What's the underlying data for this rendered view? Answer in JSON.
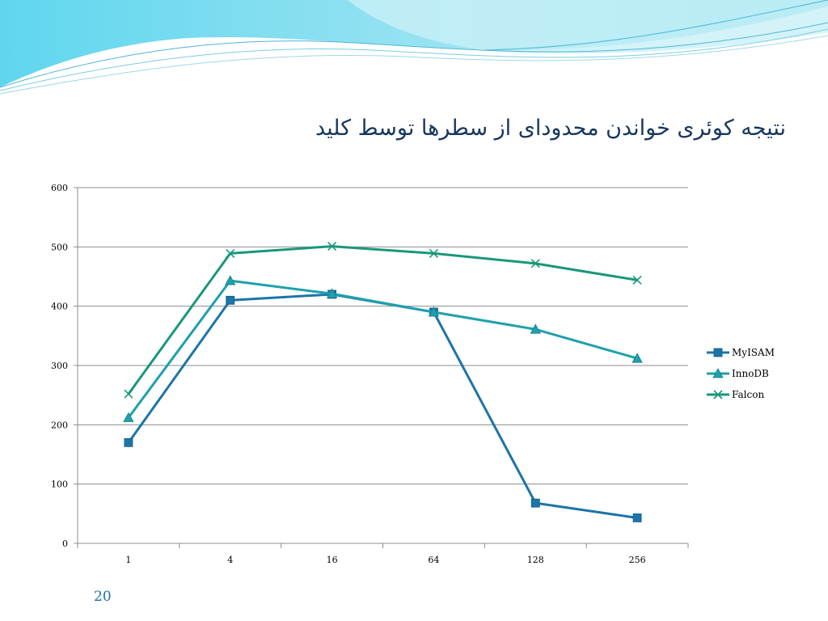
{
  "slide": {
    "title": "نتیجه کوئری خواندن محدودای از سطرها توسط کلید",
    "page_number": "20"
  },
  "chart_data": {
    "type": "line",
    "categories": [
      "1",
      "4",
      "16",
      "64",
      "128",
      "256"
    ],
    "ylim": [
      0,
      600
    ],
    "yticks": [
      0,
      100,
      200,
      300,
      400,
      500,
      600
    ],
    "grid": true,
    "legend_position": "right",
    "series": [
      {
        "name": "MyISAM",
        "values": [
          170,
          410,
          420,
          390,
          68,
          43
        ],
        "color": "#1C75A8",
        "marker": "square"
      },
      {
        "name": "InnoDB",
        "values": [
          212,
          443,
          421,
          390,
          361,
          312
        ],
        "color": "#1FA0AC",
        "marker": "triangle"
      },
      {
        "name": "Falcon",
        "values": [
          252,
          489,
          501,
          489,
          472,
          444
        ],
        "color": "#19977A",
        "marker": "x"
      }
    ]
  }
}
